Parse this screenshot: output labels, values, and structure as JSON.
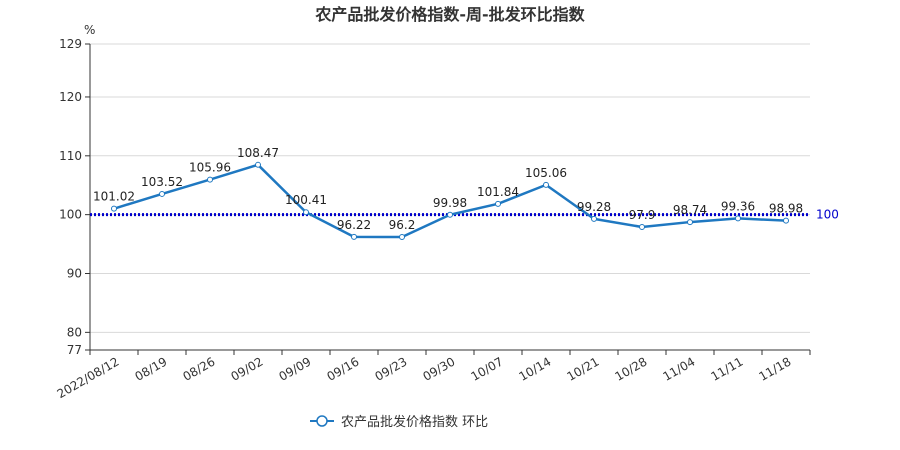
{
  "chart_data": {
    "type": "line",
    "title": "农产品批发价格指数-周-批发环比指数",
    "unit": "%",
    "categories": [
      "2022/08/12",
      "08/19",
      "08/26",
      "09/02",
      "09/09",
      "09/16",
      "09/23",
      "09/30",
      "10/07",
      "10/14",
      "10/21",
      "10/28",
      "11/04",
      "11/11",
      "11/18"
    ],
    "series": [
      {
        "name": "农产品批发价格指数 环比",
        "color": "#1f78c1",
        "values": [
          101.02,
          103.52,
          105.96,
          108.47,
          100.41,
          96.22,
          96.2,
          99.98,
          101.84,
          105.06,
          99.28,
          97.9,
          98.74,
          99.36,
          98.98
        ],
        "labels": [
          "101.02",
          "103.52",
          "105.96",
          "108.47",
          "100.41",
          "96.22",
          "96.2",
          "99.98",
          "101.84",
          "105.06",
          "99.28",
          "97.9",
          "98.74",
          "99.36",
          "98.98"
        ]
      }
    ],
    "reference_line": {
      "value": 100,
      "label": "100",
      "color": "#0000cc",
      "style": "dotted"
    },
    "yticks": [
      77,
      80,
      90,
      100,
      110,
      120,
      129
    ],
    "ylim": [
      77,
      129
    ],
    "grid": true,
    "legend_position": "bottom-center"
  }
}
